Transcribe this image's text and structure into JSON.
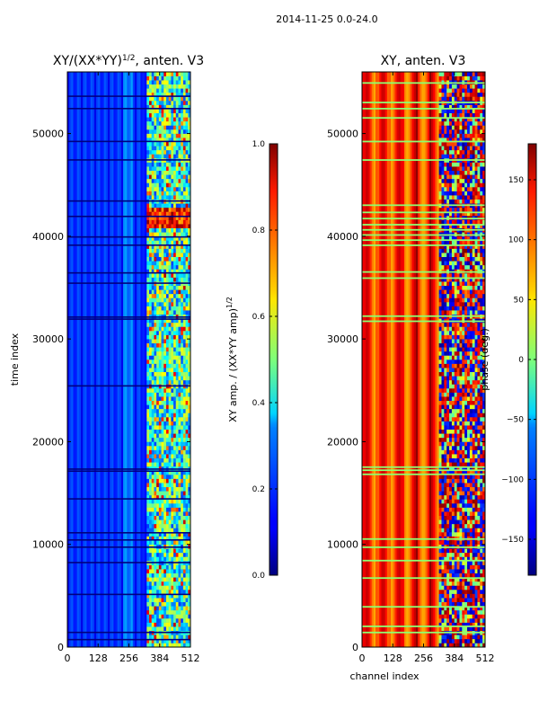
{
  "figure": {
    "suptitle": "2014-11-25 0.0-24.0"
  },
  "chart_data": [
    {
      "type": "heatmap",
      "title": "XY/(XX*YY)^{1/2}, anten. V3",
      "title_main": "XY/(XX*YY)",
      "title_exp": "1/2",
      "title_tail": ", anten. V3",
      "xlabel": "",
      "ylabel": "time index",
      "xlim": [
        0,
        512
      ],
      "ylim": [
        0,
        56000
      ],
      "xticks": [
        0,
        128,
        256,
        384,
        512
      ],
      "yticks": [
        0,
        10000,
        20000,
        30000,
        40000,
        50000
      ],
      "colormap": "jet",
      "colorbar": {
        "label": "XY amp. / (XX*YY amp)^{1/2}",
        "label_main": "XY amp. / (XX*YY amp)",
        "label_exp": "1/2",
        "range": [
          0.0,
          1.0
        ],
        "ticks": [
          "0.0",
          "0.2",
          "0.4",
          "0.6",
          "0.8",
          "1.0"
        ]
      },
      "description_values": {
        "background_amplitude": 0.15,
        "high_band_channels": [
          330,
          512
        ],
        "peak_amplitude_near_time": 41000
      }
    },
    {
      "type": "heatmap",
      "title": "XY, anten. V3",
      "xlabel": "channel index",
      "ylabel": "",
      "xlim": [
        0,
        512
      ],
      "ylim": [
        0,
        56000
      ],
      "xticks": [
        0,
        128,
        256,
        384,
        512
      ],
      "yticks": [
        0,
        10000,
        20000,
        30000,
        40000,
        50000
      ],
      "colormap": "jet",
      "colorbar": {
        "label": "phase (deg.)",
        "range": [
          -180,
          180
        ],
        "ticks": [
          "−150",
          "−100",
          "−50",
          "0",
          "50",
          "100",
          "150"
        ]
      },
      "description_values": {
        "background_phase": 130,
        "noisy_band_channels": [
          320,
          512
        ]
      }
    }
  ]
}
